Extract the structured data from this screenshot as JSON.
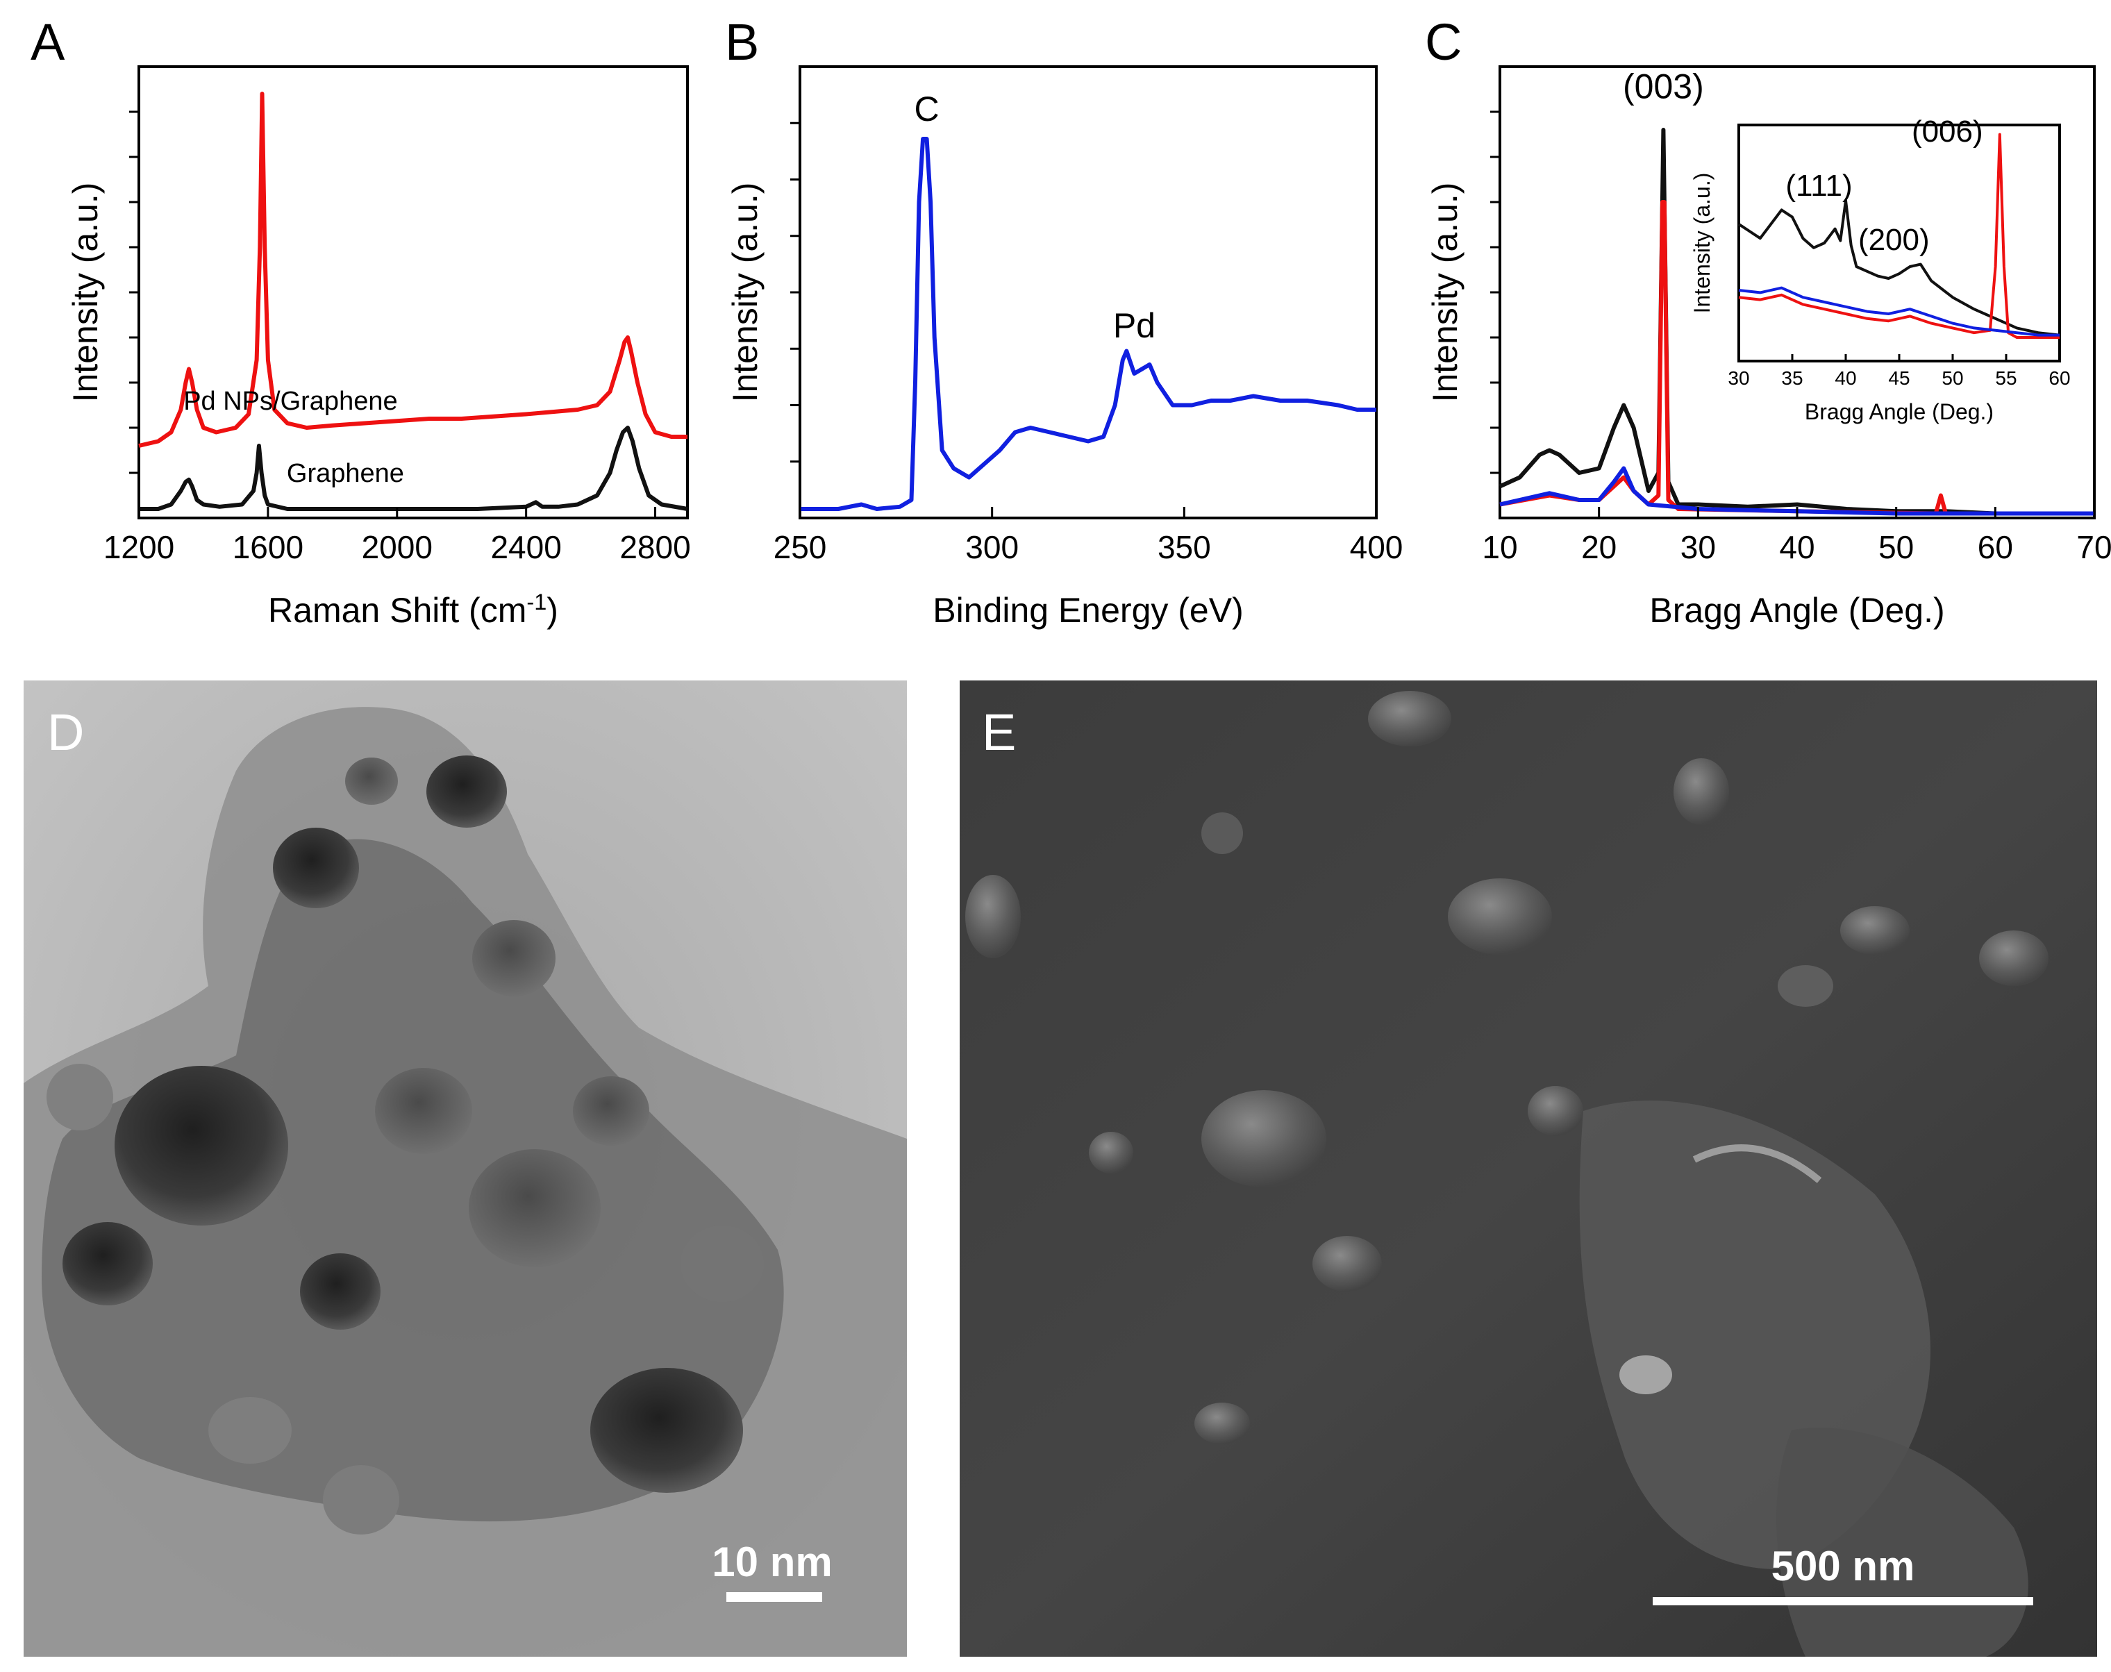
{
  "panels": {
    "a": "A",
    "b": "B",
    "c": "C",
    "d": "D",
    "e": "E"
  },
  "images": {
    "tem": {
      "scale_label": "10 nm",
      "description_hint": "TEM micrograph of Pd nanoparticles on graphene"
    },
    "sem": {
      "scale_label": "500 nm",
      "description_hint": "SEM micrograph"
    }
  },
  "colors": {
    "red": "#ee1111",
    "black": "#111111",
    "blue": "#1020e0",
    "axis": "#000000"
  },
  "chart_data": [
    {
      "id": "A",
      "type": "line",
      "xlabel": "Raman Shift (cm",
      "xlabel_sup": "-1",
      "xlabel_close": ")",
      "ylabel": "Intensity (a.u.)",
      "xlim": [
        1200,
        2900
      ],
      "ylim": [
        0,
        1
      ],
      "xticks": [
        1200,
        1600,
        2000,
        2400,
        2800
      ],
      "annotations": [
        {
          "text": "Pd NPs/Graphene",
          "x": 1670,
          "y": 0.24
        },
        {
          "text": "Graphene",
          "x": 1840,
          "y": 0.08
        }
      ],
      "series": [
        {
          "color": "red",
          "x": [
            1200,
            1260,
            1300,
            1330,
            1345,
            1355,
            1365,
            1380,
            1400,
            1440,
            1500,
            1540,
            1565,
            1575,
            1582,
            1590,
            1600,
            1620,
            1660,
            1720,
            1800,
            1900,
            2000,
            2100,
            2200,
            2300,
            2400,
            2480,
            2560,
            2620,
            2660,
            2690,
            2705,
            2715,
            2725,
            2745,
            2770,
            2800,
            2850,
            2900
          ],
          "y": [
            0.16,
            0.17,
            0.19,
            0.24,
            0.3,
            0.33,
            0.3,
            0.24,
            0.2,
            0.19,
            0.2,
            0.23,
            0.35,
            0.6,
            0.94,
            0.6,
            0.35,
            0.24,
            0.21,
            0.2,
            0.205,
            0.21,
            0.215,
            0.22,
            0.22,
            0.225,
            0.23,
            0.235,
            0.24,
            0.25,
            0.28,
            0.35,
            0.39,
            0.4,
            0.37,
            0.3,
            0.23,
            0.19,
            0.18,
            0.18
          ]
        },
        {
          "color": "black",
          "x": [
            1200,
            1260,
            1300,
            1330,
            1345,
            1355,
            1365,
            1380,
            1400,
            1450,
            1520,
            1555,
            1565,
            1572,
            1580,
            1590,
            1600,
            1660,
            1800,
            1950,
            2100,
            2250,
            2400,
            2430,
            2450,
            2500,
            2560,
            2620,
            2660,
            2680,
            2700,
            2715,
            2730,
            2750,
            2780,
            2820,
            2900
          ],
          "y": [
            0.02,
            0.02,
            0.03,
            0.06,
            0.08,
            0.085,
            0.07,
            0.04,
            0.03,
            0.025,
            0.03,
            0.06,
            0.1,
            0.16,
            0.1,
            0.05,
            0.03,
            0.02,
            0.02,
            0.02,
            0.02,
            0.02,
            0.025,
            0.035,
            0.025,
            0.025,
            0.03,
            0.05,
            0.1,
            0.15,
            0.19,
            0.2,
            0.17,
            0.11,
            0.05,
            0.03,
            0.02
          ]
        }
      ]
    },
    {
      "id": "B",
      "type": "line",
      "xlabel": "Binding Energy (eV)",
      "ylabel": "Intensity (a.u.)",
      "xlim": [
        250,
        400
      ],
      "ylim": [
        0,
        1
      ],
      "xticks": [
        250,
        300,
        350,
        400
      ],
      "annotations": [
        {
          "text": "C",
          "x": 283,
          "y": 0.88
        },
        {
          "text": "Pd",
          "x": 337,
          "y": 0.4
        }
      ],
      "series": [
        {
          "color": "blue",
          "x": [
            250,
            260,
            266,
            270,
            276,
            279,
            280,
            281,
            282,
            283,
            284,
            285,
            287,
            290,
            294,
            298,
            302,
            306,
            310,
            315,
            320,
            325,
            329,
            332,
            334,
            335,
            337,
            339,
            341,
            343,
            347,
            352,
            357,
            362,
            368,
            375,
            382,
            390,
            395,
            400
          ],
          "y": [
            0.02,
            0.02,
            0.03,
            0.02,
            0.025,
            0.04,
            0.3,
            0.7,
            0.84,
            0.84,
            0.7,
            0.4,
            0.15,
            0.11,
            0.09,
            0.12,
            0.15,
            0.19,
            0.2,
            0.19,
            0.18,
            0.17,
            0.18,
            0.25,
            0.35,
            0.37,
            0.32,
            0.33,
            0.34,
            0.3,
            0.25,
            0.25,
            0.26,
            0.26,
            0.27,
            0.26,
            0.26,
            0.25,
            0.24,
            0.24
          ]
        }
      ]
    },
    {
      "id": "C",
      "type": "line",
      "xlabel": "Bragg Angle (Deg.)",
      "ylabel": "Intensity (a.u.)",
      "xlim": [
        10,
        70
      ],
      "ylim": [
        0,
        1
      ],
      "xticks": [
        10,
        20,
        30,
        40,
        50,
        60,
        70
      ],
      "annotations": [
        {
          "text": "(003)",
          "x": 26.5,
          "y": 0.93
        }
      ],
      "series": [
        {
          "color": "black",
          "x": [
            10,
            12,
            14,
            15,
            16,
            18,
            20,
            21.5,
            22.5,
            23.5,
            25,
            26,
            26.5,
            27,
            28,
            30,
            35,
            40,
            45,
            50,
            55,
            60,
            70
          ],
          "y": [
            0.07,
            0.09,
            0.14,
            0.15,
            0.14,
            0.1,
            0.11,
            0.2,
            0.25,
            0.2,
            0.06,
            0.1,
            0.86,
            0.08,
            0.03,
            0.03,
            0.025,
            0.03,
            0.02,
            0.015,
            0.015,
            0.01,
            0.01
          ]
        },
        {
          "color": "red",
          "x": [
            10,
            15,
            18,
            20,
            21.5,
            22.5,
            23.5,
            25,
            26,
            26.4,
            26.6,
            27,
            28,
            40,
            54,
            54.5,
            55,
            60,
            70
          ],
          "y": [
            0.03,
            0.05,
            0.04,
            0.04,
            0.07,
            0.09,
            0.06,
            0.03,
            0.05,
            0.7,
            0.7,
            0.04,
            0.02,
            0.015,
            0.01,
            0.05,
            0.01,
            0.01,
            0.01
          ]
        },
        {
          "color": "blue",
          "x": [
            10,
            15,
            18,
            20,
            21.5,
            22.5,
            23.5,
            25,
            30,
            40,
            50,
            60,
            70
          ],
          "y": [
            0.03,
            0.055,
            0.04,
            0.04,
            0.08,
            0.11,
            0.06,
            0.03,
            0.02,
            0.015,
            0.01,
            0.01,
            0.01
          ]
        }
      ]
    },
    {
      "id": "C-inset",
      "type": "line",
      "xlabel": "Bragg Angle (Deg.)",
      "ylabel": "Intensity (a.u.)",
      "xlim": [
        30,
        60
      ],
      "ylim": [
        0,
        1
      ],
      "xticks": [
        30,
        35,
        40,
        45,
        50,
        55,
        60
      ],
      "annotations": [
        {
          "text": "(006)",
          "x": 49.5,
          "y": 0.93
        },
        {
          "text": "(111)",
          "x": 37.5,
          "y": 0.7
        },
        {
          "text": "(200)",
          "x": 44.5,
          "y": 0.47
        }
      ],
      "series": [
        {
          "color": "black",
          "x": [
            30,
            31,
            32,
            33,
            34,
            35,
            36,
            37,
            38,
            39,
            39.5,
            40,
            40.5,
            41,
            42,
            43,
            44,
            45,
            46,
            47,
            48,
            50,
            52,
            53,
            54,
            55,
            56,
            58,
            60
          ],
          "y": [
            0.58,
            0.55,
            0.52,
            0.58,
            0.64,
            0.61,
            0.52,
            0.48,
            0.5,
            0.56,
            0.51,
            0.68,
            0.49,
            0.4,
            0.38,
            0.36,
            0.35,
            0.37,
            0.4,
            0.41,
            0.34,
            0.27,
            0.22,
            0.2,
            0.18,
            0.16,
            0.14,
            0.12,
            0.11
          ]
        },
        {
          "color": "red",
          "x": [
            30,
            32,
            34,
            36,
            38,
            40,
            42,
            44,
            46,
            48,
            50,
            52,
            53.5,
            54,
            54.4,
            54.8,
            55.2,
            56,
            58,
            60
          ],
          "y": [
            0.27,
            0.26,
            0.28,
            0.24,
            0.22,
            0.2,
            0.18,
            0.17,
            0.19,
            0.16,
            0.14,
            0.12,
            0.13,
            0.4,
            0.96,
            0.4,
            0.12,
            0.1,
            0.1,
            0.1
          ]
        },
        {
          "color": "blue",
          "x": [
            30,
            32,
            34,
            36,
            38,
            40,
            42,
            44,
            46,
            48,
            50,
            52,
            54,
            56,
            58,
            60
          ],
          "y": [
            0.3,
            0.29,
            0.31,
            0.27,
            0.25,
            0.23,
            0.21,
            0.2,
            0.22,
            0.19,
            0.16,
            0.14,
            0.13,
            0.12,
            0.11,
            0.11
          ]
        }
      ]
    }
  ]
}
